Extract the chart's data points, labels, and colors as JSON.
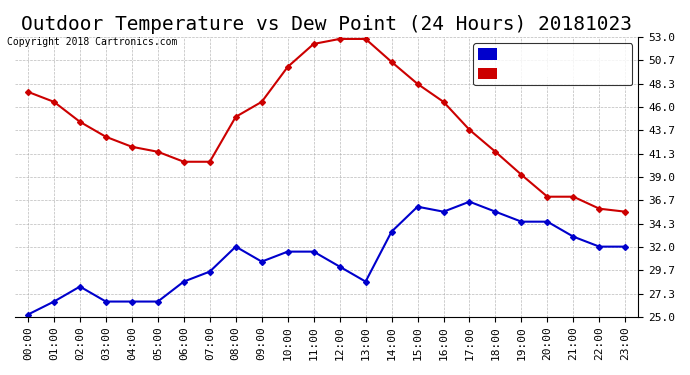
{
  "title": "Outdoor Temperature vs Dew Point (24 Hours) 20181023",
  "copyright": "Copyright 2018 Cartronics.com",
  "background_color": "#ffffff",
  "plot_bg_color": "#ffffff",
  "grid_color": "#aaaaaa",
  "x_labels": [
    "00:00",
    "01:00",
    "02:00",
    "03:00",
    "04:00",
    "05:00",
    "06:00",
    "07:00",
    "08:00",
    "09:00",
    "10:00",
    "11:00",
    "12:00",
    "13:00",
    "14:00",
    "15:00",
    "16:00",
    "17:00",
    "18:00",
    "19:00",
    "20:00",
    "21:00",
    "22:00",
    "23:00"
  ],
  "ylim": [
    25.0,
    53.0
  ],
  "yticks": [
    25.0,
    27.3,
    29.7,
    32.0,
    34.3,
    36.7,
    39.0,
    41.3,
    43.7,
    46.0,
    48.3,
    50.7,
    53.0
  ],
  "temperature": [
    47.5,
    46.5,
    44.5,
    43.0,
    42.0,
    41.5,
    40.5,
    40.5,
    45.0,
    46.5,
    50.0,
    52.3,
    52.8,
    52.8,
    50.5,
    48.3,
    46.5,
    43.7,
    41.5,
    39.2,
    37.0,
    37.0,
    35.8,
    35.5
  ],
  "dew_point": [
    25.2,
    26.5,
    28.0,
    26.5,
    26.5,
    26.5,
    28.5,
    29.5,
    32.0,
    30.5,
    31.5,
    31.5,
    30.0,
    28.5,
    33.5,
    36.0,
    35.5,
    36.5,
    35.5,
    34.5,
    34.5,
    33.0,
    32.0,
    32.0
  ],
  "temp_color": "#cc0000",
  "dew_color": "#0000cc",
  "legend_dew_bg": "#0000cc",
  "legend_temp_bg": "#cc0000",
  "marker": "D",
  "marker_size": 3.0,
  "line_width": 1.5,
  "title_fontsize": 14,
  "axis_fontsize": 9,
  "tick_fontsize": 8,
  "legend_fontsize": 9
}
